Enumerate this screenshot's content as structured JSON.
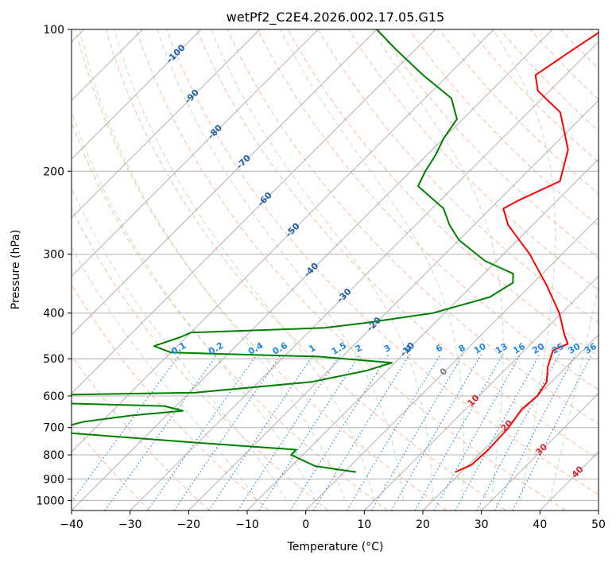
{
  "chart_data": {
    "type": "line",
    "title": "wetPf2_C2E4.2026.002.17.05.G15",
    "xlabel": "Temperature (°C)",
    "ylabel": "Pressure (hPa)",
    "xlim": [
      -40,
      50
    ],
    "ylim": [
      1050,
      100
    ],
    "y_scale": "log",
    "skew": "skew-T log-p",
    "grid": true,
    "x_ticks": [
      -40,
      -30,
      -20,
      -10,
      0,
      10,
      20,
      30,
      40,
      50
    ],
    "y_ticks": [
      100,
      200,
      300,
      400,
      500,
      600,
      700,
      800,
      900,
      1000
    ],
    "series": [
      {
        "color": "#ff0000",
        "points": [
          {
            "p": 870,
            "t": 19
          },
          {
            "p": 840,
            "t": 20.5
          },
          {
            "p": 780,
            "t": 20.8
          },
          {
            "p": 700,
            "t": 20.5
          },
          {
            "p": 640,
            "t": 19.6
          },
          {
            "p": 600,
            "t": 20.0
          },
          {
            "p": 560,
            "t": 19.2
          },
          {
            "p": 520,
            "t": 16.8
          },
          {
            "p": 480,
            "t": 14.9
          },
          {
            "p": 465,
            "t": 16.3
          },
          {
            "p": 445,
            "t": 14.2
          },
          {
            "p": 400,
            "t": 9.6
          },
          {
            "p": 350,
            "t": 2.8
          },
          {
            "p": 300,
            "t": -5.5
          },
          {
            "p": 260,
            "t": -14.2
          },
          {
            "p": 240,
            "t": -17.8
          },
          {
            "p": 230,
            "t": -16.5
          },
          {
            "p": 210,
            "t": -12.8
          },
          {
            "p": 180,
            "t": -16.8
          },
          {
            "p": 150,
            "t": -24.5
          },
          {
            "p": 135,
            "t": -32
          },
          {
            "p": 125,
            "t": -35.1
          },
          {
            "p": 112,
            "t": -33.3
          },
          {
            "p": 100,
            "t": -31.3
          }
        ]
      },
      {
        "color": "#008000",
        "points": [
          {
            "p": 870,
            "t": 2
          },
          {
            "p": 845,
            "t": -6
          },
          {
            "p": 800,
            "t": -12
          },
          {
            "p": 780,
            "t": -12
          },
          {
            "p": 760,
            "t": -26
          },
          {
            "p": 720,
            "t": -53
          },
          {
            "p": 700,
            "t": -56
          },
          {
            "p": 680,
            "t": -53
          },
          {
            "p": 660,
            "t": -46
          },
          {
            "p": 645,
            "t": -38
          },
          {
            "p": 630,
            "t": -42
          },
          {
            "p": 620,
            "t": -64
          },
          {
            "p": 600,
            "t": -74
          },
          {
            "p": 590,
            "t": -39
          },
          {
            "p": 560,
            "t": -21
          },
          {
            "p": 530,
            "t": -13.5
          },
          {
            "p": 510,
            "t": -10.5
          },
          {
            "p": 495,
            "t": -24
          },
          {
            "p": 485,
            "t": -50
          },
          {
            "p": 470,
            "t": -54
          },
          {
            "p": 450,
            "t": -51
          },
          {
            "p": 440,
            "t": -50
          },
          {
            "p": 430,
            "t": -28
          },
          {
            "p": 420,
            "t": -22
          },
          {
            "p": 400,
            "t": -12
          },
          {
            "p": 370,
            "t": -5
          },
          {
            "p": 345,
            "t": -3.5
          },
          {
            "p": 330,
            "t": -5
          },
          {
            "p": 310,
            "t": -12
          },
          {
            "p": 280,
            "t": -20
          },
          {
            "p": 260,
            "t": -24.2
          },
          {
            "p": 240,
            "t": -28
          },
          {
            "p": 215,
            "t": -36.2
          },
          {
            "p": 200,
            "t": -37.5
          },
          {
            "p": 185,
            "t": -38.5
          },
          {
            "p": 170,
            "t": -40
          },
          {
            "p": 155,
            "t": -41
          },
          {
            "p": 140,
            "t": -45.5
          },
          {
            "p": 125,
            "t": -54.3
          },
          {
            "p": 110,
            "t": -63.5
          },
          {
            "p": 100,
            "t": -70
          }
        ]
      }
    ],
    "dry_adiabat_labels": [
      "-100",
      "-90",
      "-80",
      "-70",
      "-60",
      "-50",
      "-40",
      "-30",
      "-20",
      "-10",
      "0",
      "10",
      "20",
      "30",
      "40"
    ],
    "mixing_ratio_labels": [
      "0.1",
      "0.2",
      "0.4",
      "0.6",
      "1",
      "1.5",
      "2",
      "3",
      "4",
      "6",
      "8",
      "10",
      "13",
      "16",
      "20",
      "25",
      "30",
      "36"
    ],
    "colors": {
      "temperature": "#ff0000",
      "dewpoint": "#008000",
      "dry_adiabat": "#f4a582",
      "moist_adiabat": "#a1d99b",
      "mixing_ratio": "#1e88e5",
      "isotherm": "#9e9e9e",
      "isotherm_label_cold": "#1f5fa8",
      "isotherm_label_warm": "#d62728",
      "isotherm_label_zero": "#808080"
    }
  }
}
